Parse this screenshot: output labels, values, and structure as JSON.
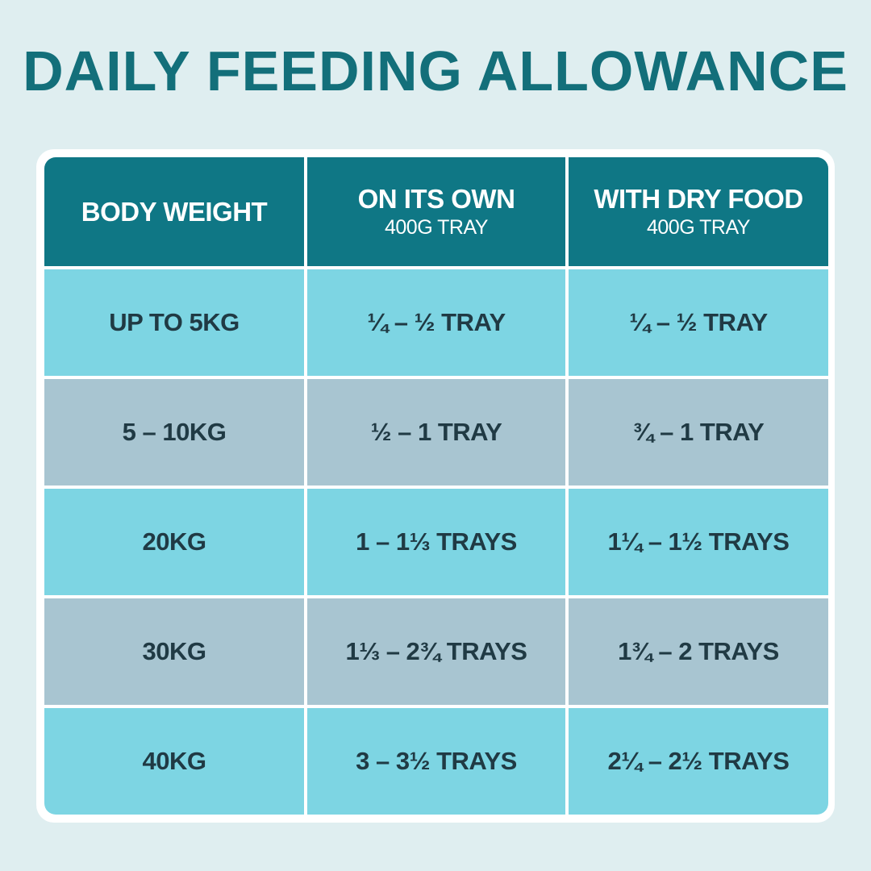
{
  "header": {
    "title": "DAILY FEEDING ALLOWANCE"
  },
  "table": {
    "columns": [
      {
        "title": "BODY WEIGHT"
      },
      {
        "title": "ON ITS OWN",
        "subtitle": "400G TRAY"
      },
      {
        "title": "WITH DRY FOOD",
        "subtitle": "400G TRAY"
      }
    ],
    "rows": [
      [
        "UP TO 5KG",
        "¼ – ½ TRAY",
        "¼ – ½ TRAY"
      ],
      [
        "5 – 10KG",
        "½ – 1 TRAY",
        "¾ – 1 TRAY"
      ],
      [
        "20KG",
        "1 – 1⅓ TRAYS",
        "1¼ – 1½ TRAYS"
      ],
      [
        "30KG",
        "1⅓ – 2¾ TRAYS",
        "1¾ – 2 TRAYS"
      ],
      [
        "40KG",
        "3 – 3½ TRAYS",
        "2¼ – 2½ TRAYS"
      ]
    ]
  }
}
